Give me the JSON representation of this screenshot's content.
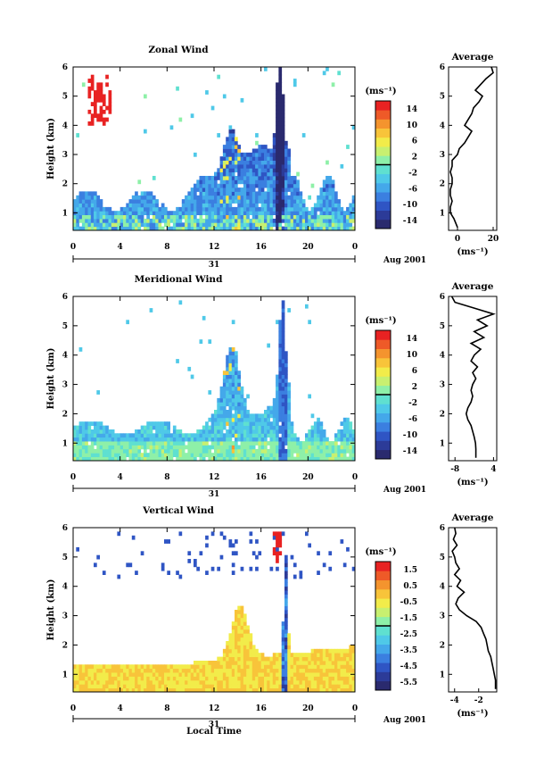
{
  "panels": [
    {
      "key": "zonal",
      "title": "Zonal Wind",
      "ylabel": "Height (km)",
      "yticks": [
        "1",
        "2",
        "3",
        "4",
        "5",
        "6"
      ],
      "xticks": [
        "0",
        "4",
        "8",
        "12",
        "16",
        "20",
        "0"
      ],
      "day_label": "31",
      "month_label": "Aug 2001",
      "cbar_unit": "(ms⁻¹)",
      "cbar_ticks": [
        "14",
        "10",
        "6",
        "2",
        "-2",
        "-6",
        "-10",
        "-14"
      ],
      "avg_title": "Average",
      "avg_xticks": [
        "0",
        "20"
      ],
      "avg_xlabel": "(ms⁻¹)",
      "avg_yticks": [
        "1",
        "2",
        "3",
        "4",
        "5",
        "6"
      ]
    },
    {
      "key": "meridional",
      "title": "Meridional Wind",
      "ylabel": "Height (km)",
      "yticks": [
        "1",
        "2",
        "3",
        "4",
        "5",
        "6"
      ],
      "xticks": [
        "0",
        "4",
        "8",
        "12",
        "16",
        "20",
        "0"
      ],
      "day_label": "31",
      "month_label": "Aug 2001",
      "cbar_unit": "(ms⁻¹)",
      "cbar_ticks": [
        "14",
        "10",
        "6",
        "2",
        "-2",
        "-6",
        "-10",
        "-14"
      ],
      "avg_title": "Average",
      "avg_xticks": [
        "-8",
        "4"
      ],
      "avg_xlabel": "(ms⁻¹)",
      "avg_yticks": [
        "1",
        "2",
        "3",
        "4",
        "5",
        "6"
      ]
    },
    {
      "key": "vertical",
      "title": "Vertical Wind",
      "ylabel": "Height (km)",
      "yticks": [
        "1",
        "2",
        "3",
        "4",
        "5",
        "6"
      ],
      "xticks": [
        "0",
        "4",
        "8",
        "12",
        "16",
        "20",
        "0"
      ],
      "day_label": "31",
      "month_label": "Aug 2001",
      "xlabel": "Local Time",
      "cbar_unit": "(ms⁻¹)",
      "cbar_ticks": [
        "1.5",
        "0.5",
        "-0.5",
        "-1.5",
        "-2.5",
        "-3.5",
        "-4.5",
        "-5.5"
      ],
      "avg_title": "Average",
      "avg_xticks": [
        "-4",
        "-2"
      ],
      "avg_xlabel": "(ms⁻¹)",
      "avg_yticks": [
        "1",
        "2",
        "3",
        "4",
        "5",
        "6"
      ]
    }
  ],
  "colors": {
    "scale": [
      "#2a2a6e",
      "#2c3b98",
      "#2f55c4",
      "#3b7fe0",
      "#44a8ea",
      "#4fc9e8",
      "#5fe0d0",
      "#8ef0a8",
      "#c8f070",
      "#f2ec4a",
      "#f8c43a",
      "#f4942e",
      "#ee5a28",
      "#e82222"
    ]
  },
  "chart_data": [
    {
      "type": "heatmap",
      "title": "Zonal Wind",
      "xlabel": "",
      "ylabel": "Height (km)",
      "x_unit": "hour (local time, 31 Aug 2001)",
      "xlim": [
        0,
        24
      ],
      "ylim": [
        0.4,
        6
      ],
      "clim": [
        -16,
        16
      ],
      "colorbar_unit": "(ms⁻¹)",
      "profile": {
        "title": "Average",
        "xlim": [
          -5,
          22
        ],
        "ylim": [
          0.4,
          6
        ],
        "z": [
          0.5,
          0.8,
          1.0,
          1.2,
          1.4,
          1.6,
          1.8,
          2.0,
          2.2,
          2.4,
          2.6,
          2.8,
          3.0,
          3.2,
          3.4,
          3.6,
          3.8,
          4.0,
          4.2,
          4.4,
          4.6,
          4.8,
          5.0,
          5.2,
          5.4,
          5.6,
          5.8,
          6.0
        ],
        "v": [
          0,
          -2,
          -4,
          -4,
          -3,
          -4,
          -4,
          -3,
          -3,
          -4,
          -3,
          -3,
          0,
          1,
          4,
          6,
          8,
          4,
          6,
          8,
          9,
          12,
          14,
          10,
          13,
          16,
          20,
          19
        ]
      }
    },
    {
      "type": "heatmap",
      "title": "Meridional Wind",
      "xlabel": "",
      "ylabel": "Height (km)",
      "x_unit": "hour (local time, 31 Aug 2001)",
      "xlim": [
        0,
        24
      ],
      "ylim": [
        0.4,
        6
      ],
      "clim": [
        -16,
        16
      ],
      "colorbar_unit": "(ms⁻¹)",
      "profile": {
        "title": "Average",
        "xlim": [
          -10,
          5
        ],
        "ylim": [
          0.4,
          6
        ],
        "z": [
          0.5,
          0.8,
          1.0,
          1.2,
          1.4,
          1.6,
          1.8,
          2.0,
          2.2,
          2.4,
          2.6,
          2.8,
          3.0,
          3.2,
          3.4,
          3.6,
          3.8,
          4.0,
          4.2,
          4.4,
          4.6,
          4.8,
          5.0,
          5.2,
          5.4,
          5.6,
          5.8,
          6.0
        ],
        "v": [
          -1.5,
          -1.5,
          -1.6,
          -2,
          -2.5,
          -3,
          -4,
          -4.5,
          -4,
          -3,
          -2.5,
          -3,
          -2.5,
          -1.5,
          -2.5,
          -1,
          -3,
          -2,
          0,
          -3,
          1,
          -2,
          2,
          -1,
          4,
          -2,
          -8,
          -9
        ]
      }
    },
    {
      "type": "heatmap",
      "title": "Vertical Wind",
      "xlabel": "Local Time",
      "ylabel": "Height (km)",
      "x_unit": "hour (local time, 31 Aug 2001)",
      "xlim": [
        0,
        24
      ],
      "ylim": [
        0.4,
        6
      ],
      "clim": [
        -6,
        2
      ],
      "colorbar_unit": "(ms⁻¹)",
      "profile": {
        "title": "Average",
        "xlim": [
          -4.5,
          -0.5
        ],
        "ylim": [
          0.4,
          6
        ],
        "z": [
          0.5,
          0.8,
          1.0,
          1.2,
          1.4,
          1.6,
          1.8,
          2.0,
          2.2,
          2.4,
          2.6,
          2.8,
          3.0,
          3.2,
          3.4,
          3.6,
          3.8,
          4.0,
          4.2,
          4.4,
          4.6,
          4.8,
          5.0,
          5.2,
          5.4,
          5.6,
          5.8,
          6.0
        ],
        "v": [
          -0.6,
          -0.6,
          -0.7,
          -0.8,
          -0.9,
          -1.0,
          -1.2,
          -1.3,
          -1.4,
          -1.6,
          -1.8,
          -2.2,
          -3.0,
          -3.6,
          -3.9,
          -3.7,
          -3.2,
          -3.8,
          -3.5,
          -4.0,
          -3.6,
          -3.9,
          -4.0,
          -4.2,
          -3.8,
          -4.1,
          -3.9,
          -4.0
        ]
      }
    }
  ]
}
